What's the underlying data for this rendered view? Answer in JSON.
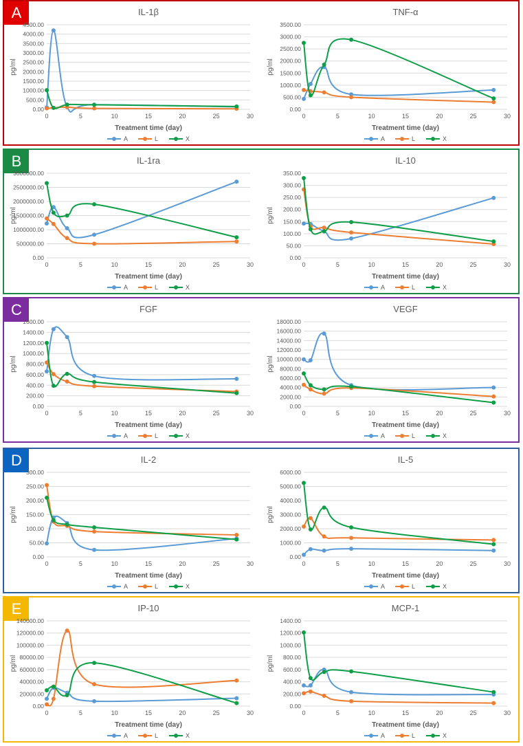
{
  "palette": {
    "A": "#5b9bd5",
    "L": "#ed7d31",
    "X": "#0e9e48"
  },
  "legend": [
    "A",
    "L",
    "X"
  ],
  "panels": [
    {
      "label": "A",
      "border": "#c00000",
      "badge": "#e00000"
    },
    {
      "label": "B",
      "border": "#1b8a45",
      "badge": "#1b8a45"
    },
    {
      "label": "C",
      "border": "#7b2c9e",
      "badge": "#7b2c9e"
    },
    {
      "label": "D",
      "border": "#2e5fa3",
      "badge": "#0b64c0"
    },
    {
      "label": "E",
      "border": "#f5b800",
      "badge": "#f5b800"
    }
  ],
  "chart_data": [
    {
      "type": "line",
      "title": "IL-1β",
      "xlabel": "Treatment time (day)",
      "ylabel": "pg/ml",
      "x": [
        0,
        1,
        3,
        7,
        28
      ],
      "xlim": [
        0,
        30
      ],
      "xticks": [
        "0",
        "5",
        "10",
        "15",
        "20",
        "25",
        "30"
      ],
      "ylim": [
        0,
        4500
      ],
      "yticks": [
        "0.00",
        "500.00",
        "1000.00",
        "1500.00",
        "2000.00",
        "2500.00",
        "3000.00",
        "3500.00",
        "4000.00",
        "4500.00"
      ],
      "series": [
        {
          "name": "A",
          "values": [
            100,
            4200,
            120,
            250,
            130
          ]
        },
        {
          "name": "L",
          "values": [
            50,
            80,
            120,
            50,
            30
          ]
        },
        {
          "name": "X",
          "values": [
            1020,
            80,
            250,
            240,
            150
          ]
        }
      ]
    },
    {
      "type": "line",
      "title": "TNF-α",
      "xlabel": "Treatment time (day)",
      "ylabel": "pg/ml",
      "x": [
        0,
        1,
        3,
        7,
        28
      ],
      "xlim": [
        0,
        30
      ],
      "xticks": [
        "0",
        "5",
        "10",
        "15",
        "20",
        "25",
        "30"
      ],
      "ylim": [
        0,
        3500
      ],
      "yticks": [
        "0.00",
        "500.00",
        "1000.00",
        "1500.00",
        "2000.00",
        "2500.00",
        "3000.00",
        "3500.00"
      ],
      "series": [
        {
          "name": "A",
          "values": [
            430,
            1050,
            1750,
            620,
            800
          ]
        },
        {
          "name": "L",
          "values": [
            800,
            750,
            700,
            500,
            300
          ]
        },
        {
          "name": "X",
          "values": [
            2750,
            580,
            1850,
            2880,
            450
          ]
        }
      ]
    },
    {
      "type": "line",
      "title": "IL-1ra",
      "xlabel": "Treatment time (day)",
      "ylabel": "pg/ml",
      "x": [
        0,
        1,
        3,
        7,
        28
      ],
      "xlim": [
        0,
        30
      ],
      "xticks": [
        "0",
        "5",
        "10",
        "15",
        "20",
        "25",
        "30"
      ],
      "ylim": [
        0,
        3000000
      ],
      "yticks": [
        "0.00",
        "500000.00",
        "1000000.00",
        "1500000.00",
        "2000000.00",
        "2500000.00",
        "3000000.00"
      ],
      "series": [
        {
          "name": "A",
          "values": [
            1220000,
            1800000,
            1050000,
            820000,
            2700000
          ]
        },
        {
          "name": "L",
          "values": [
            1400000,
            1200000,
            700000,
            500000,
            580000
          ]
        },
        {
          "name": "X",
          "values": [
            2650000,
            1600000,
            1500000,
            1900000,
            730000
          ]
        }
      ]
    },
    {
      "type": "line",
      "title": "IL-10",
      "xlabel": "Treatment time (day)",
      "ylabel": "pg/ml",
      "x": [
        0,
        1,
        3,
        7,
        28
      ],
      "xlim": [
        0,
        30
      ],
      "xticks": [
        "0",
        "5",
        "10",
        "15",
        "20",
        "25",
        "30"
      ],
      "ylim": [
        0,
        350
      ],
      "yticks": [
        "0.00",
        "50.00",
        "100.00",
        "150.00",
        "200.00",
        "250.00",
        "300.00",
        "350.00"
      ],
      "series": [
        {
          "name": "A",
          "values": [
            142,
            140,
            110,
            80,
            248
          ]
        },
        {
          "name": "L",
          "values": [
            283,
            130,
            125,
            105,
            57
          ]
        },
        {
          "name": "X",
          "values": [
            330,
            118,
            110,
            148,
            68
          ]
        }
      ]
    },
    {
      "type": "line",
      "title": "FGF",
      "xlabel": "Treatment time (day)",
      "ylabel": "pg/ml",
      "x": [
        0,
        1,
        3,
        7,
        28
      ],
      "xlim": [
        0,
        30
      ],
      "xticks": [
        "0",
        "5",
        "10",
        "15",
        "20",
        "25",
        "30"
      ],
      "ylim": [
        0,
        1600
      ],
      "yticks": [
        "0.00",
        "200.00",
        "400.00",
        "600.00",
        "800.00",
        "1000.00",
        "1200.00",
        "1400.00",
        "1600.00"
      ],
      "series": [
        {
          "name": "A",
          "values": [
            660,
            1460,
            1310,
            575,
            520
          ]
        },
        {
          "name": "L",
          "values": [
            830,
            610,
            470,
            380,
            280
          ]
        },
        {
          "name": "X",
          "values": [
            1200,
            390,
            615,
            460,
            250
          ]
        }
      ]
    },
    {
      "type": "line",
      "title": "VEGF",
      "xlabel": "Treatment time (day)",
      "ylabel": "pg/ml",
      "x": [
        0,
        1,
        3,
        7,
        28
      ],
      "xlim": [
        0,
        30
      ],
      "xticks": [
        "0",
        "5",
        "10",
        "15",
        "20",
        "25",
        "30"
      ],
      "ylim": [
        0,
        18000
      ],
      "yticks": [
        "0.00",
        "2000.00",
        "4000.00",
        "6000.00",
        "8000.00",
        "10000.00",
        "12000.00",
        "14000.00",
        "16000.00",
        "18000.00"
      ],
      "series": [
        {
          "name": "A",
          "values": [
            10000,
            9800,
            15500,
            4500,
            4000
          ]
        },
        {
          "name": "L",
          "values": [
            4600,
            3600,
            2700,
            3900,
            2100
          ]
        },
        {
          "name": "X",
          "values": [
            7000,
            4500,
            3600,
            4200,
            800
          ]
        }
      ]
    },
    {
      "type": "line",
      "title": "IL-2",
      "xlabel": "Treatment time (day)",
      "ylabel": "pg/ml",
      "x": [
        0,
        1,
        3,
        7,
        28
      ],
      "xlim": [
        0,
        30
      ],
      "xticks": [
        "0",
        "5",
        "10",
        "15",
        "20",
        "25",
        "30"
      ],
      "ylim": [
        0,
        300
      ],
      "yticks": [
        "0.00",
        "50.00",
        "100.00",
        "150.00",
        "200.00",
        "250.00",
        "300.00"
      ],
      "series": [
        {
          "name": "A",
          "values": [
            48,
            140,
            120,
            25,
            65
          ]
        },
        {
          "name": "L",
          "values": [
            255,
            125,
            110,
            90,
            78
          ]
        },
        {
          "name": "X",
          "values": [
            210,
            130,
            115,
            105,
            62
          ]
        }
      ]
    },
    {
      "type": "line",
      "title": "IL-5",
      "xlabel": "Treatment time (day)",
      "ylabel": "pg/ml",
      "x": [
        0,
        1,
        3,
        7,
        28
      ],
      "xlim": [
        0,
        30
      ],
      "xticks": [
        "0",
        "5",
        "10",
        "15",
        "20",
        "25",
        "30"
      ],
      "ylim": [
        0,
        6000
      ],
      "yticks": [
        "0.00",
        "1000.00",
        "2000.00",
        "3000.00",
        "4000.00",
        "5000.00",
        "6000.00"
      ],
      "series": [
        {
          "name": "A",
          "values": [
            150,
            550,
            450,
            580,
            450
          ]
        },
        {
          "name": "L",
          "values": [
            2150,
            2750,
            1450,
            1350,
            1200
          ]
        },
        {
          "name": "X",
          "values": [
            5250,
            1950,
            3500,
            2100,
            900
          ]
        }
      ]
    },
    {
      "type": "line",
      "title": "IP-10",
      "xlabel": "Treatment time (day)",
      "ylabel": "pg/ml",
      "x": [
        0,
        1,
        3,
        7,
        28
      ],
      "xlim": [
        0,
        30
      ],
      "xticks": [
        "0",
        "5",
        "10",
        "15",
        "20",
        "25",
        "30"
      ],
      "ylim": [
        0,
        140000
      ],
      "yticks": [
        "0.00",
        "20000.00",
        "40000.00",
        "60000.00",
        "80000.00",
        "100000.00",
        "120000.00",
        "140000.00"
      ],
      "series": [
        {
          "name": "A",
          "values": [
            12000,
            30000,
            22000,
            8000,
            13000
          ]
        },
        {
          "name": "L",
          "values": [
            3000,
            12000,
            124000,
            36000,
            42000
          ]
        },
        {
          "name": "X",
          "values": [
            26000,
            32000,
            18000,
            71000,
            5000
          ]
        }
      ]
    },
    {
      "type": "line",
      "title": "MCP-1",
      "xlabel": "Treatment time (day)",
      "ylabel": "pg/ml",
      "x": [
        0,
        1,
        3,
        7,
        28
      ],
      "xlim": [
        0,
        30
      ],
      "xticks": [
        "0",
        "5",
        "10",
        "15",
        "20",
        "25",
        "30"
      ],
      "ylim": [
        0,
        1400
      ],
      "yticks": [
        "0.00",
        "200.00",
        "400.00",
        "600.00",
        "800.00",
        "1000.00",
        "1200.00",
        "1400.00"
      ],
      "series": [
        {
          "name": "A",
          "values": [
            340,
            340,
            600,
            230,
            190
          ]
        },
        {
          "name": "L",
          "values": [
            210,
            240,
            170,
            80,
            50
          ]
        },
        {
          "name": "X",
          "values": [
            1210,
            460,
            560,
            570,
            230
          ]
        }
      ]
    }
  ]
}
